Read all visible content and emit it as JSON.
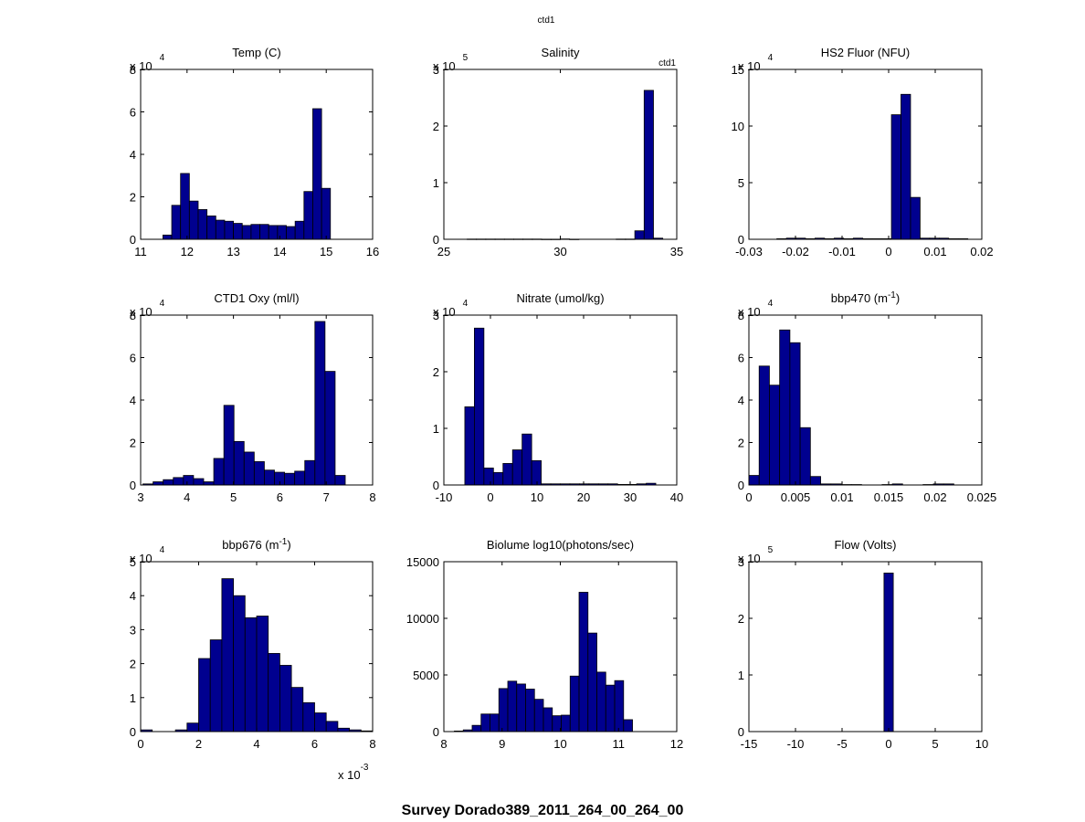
{
  "figure": {
    "header": "ctd1",
    "footer": "Survey Dorado389_2011_264_00_264_00"
  },
  "chart_data": [
    {
      "type": "bar",
      "title": "Temp (C)",
      "multiplier": {
        "base": "x 10",
        "exp": "4",
        "position": "top"
      },
      "xlim": [
        11,
        16
      ],
      "ylim": [
        0,
        8
      ],
      "xticks": [
        11,
        12,
        13,
        14,
        15,
        16
      ],
      "yticks": [
        0,
        2,
        4,
        6,
        8
      ],
      "bin_edges_start": 11.48,
      "bin_width": 0.19,
      "values": [
        0.2,
        1.6,
        3.1,
        1.8,
        1.4,
        1.1,
        0.9,
        0.85,
        0.75,
        0.65,
        0.7,
        0.7,
        0.65,
        0.65,
        0.6,
        0.85,
        2.25,
        6.15,
        2.4
      ],
      "grid": false
    },
    {
      "type": "bar",
      "title": "Salinity",
      "legend": "ctd1",
      "multiplier": {
        "base": "x 10",
        "exp": "5",
        "position": "top"
      },
      "xlim": [
        25,
        35
      ],
      "ylim": [
        0,
        3
      ],
      "xticks": [
        25,
        30,
        35
      ],
      "yticks": [
        0,
        1,
        2,
        3
      ],
      "bin_edges_start": 26.0,
      "bin_width": 0.4,
      "values": [
        0.004,
        0.004,
        0.004,
        0.004,
        0.004,
        0.004,
        0.004,
        0.004,
        0.002,
        0.002,
        0.006,
        0.002,
        0,
        0,
        0,
        0,
        0.004,
        0.004,
        0.15,
        2.63,
        0.02
      ],
      "grid": false
    },
    {
      "type": "bar",
      "title": "HS2 Fluor (NFU)",
      "multiplier": {
        "base": "x 10",
        "exp": "4",
        "position": "top"
      },
      "xlim": [
        -0.03,
        0.02
      ],
      "ylim": [
        0,
        15
      ],
      "xticks": [
        -0.03,
        -0.02,
        -0.01,
        0,
        0.01,
        0.02
      ],
      "yticks": [
        0,
        5,
        10,
        15
      ],
      "bin_edges_start": -0.024,
      "bin_width": 0.00205,
      "values": [
        0.05,
        0.1,
        0.1,
        0.05,
        0.1,
        0.05,
        0.1,
        0.05,
        0.1,
        0.05,
        0.05,
        0.05,
        11.0,
        12.8,
        3.7,
        0.1,
        0.1,
        0.1,
        0.05,
        0.05
      ],
      "grid": false
    },
    {
      "type": "bar",
      "title": "CTD1 Oxy (ml/l)",
      "multiplier": {
        "base": "x 10",
        "exp": "4",
        "position": "top"
      },
      "xlim": [
        3,
        8
      ],
      "ylim": [
        0,
        8
      ],
      "xticks": [
        3,
        4,
        5,
        6,
        7,
        8
      ],
      "yticks": [
        0,
        2,
        4,
        6,
        8
      ],
      "bin_edges_start": 3.05,
      "bin_width": 0.218,
      "values": [
        0.05,
        0.15,
        0.25,
        0.35,
        0.45,
        0.3,
        0.15,
        1.25,
        3.75,
        2.05,
        1.55,
        1.1,
        0.7,
        0.6,
        0.55,
        0.65,
        1.15,
        7.7,
        5.35,
        0.45
      ],
      "grid": false
    },
    {
      "type": "bar",
      "title": "Nitrate (umol/kg)",
      "multiplier": {
        "base": "x 10",
        "exp": "4",
        "position": "top"
      },
      "xlim": [
        -10,
        40
      ],
      "ylim": [
        0,
        3
      ],
      "xticks": [
        -10,
        0,
        10,
        20,
        30,
        40
      ],
      "yticks": [
        0,
        1,
        2,
        3
      ],
      "bin_edges_start": -5.5,
      "bin_width": 2.05,
      "values": [
        1.38,
        2.77,
        0.3,
        0.22,
        0.38,
        0.62,
        0.9,
        0.43,
        0.02,
        0.02,
        0.02,
        0.02,
        0.02,
        0.02,
        0.02,
        0.02,
        0.01,
        0.01,
        0.02,
        0.03
      ],
      "grid": false
    },
    {
      "type": "bar",
      "title": "bbp470 (m",
      "title_sup": "-1",
      "title_end": ")",
      "multiplier": {
        "base": "x 10",
        "exp": "4",
        "position": "top"
      },
      "xlim": [
        0,
        0.025
      ],
      "ylim": [
        0,
        8
      ],
      "xticks": [
        0,
        0.005,
        0.01,
        0.015,
        0.02,
        0.025
      ],
      "yticks": [
        0,
        2,
        4,
        6,
        8
      ],
      "bin_edges_start": 0.0,
      "bin_width": 0.0011,
      "values": [
        0.45,
        5.6,
        4.7,
        7.3,
        6.7,
        2.7,
        0.4,
        0.05,
        0.05,
        0.02,
        0.02,
        0,
        0,
        0.02,
        0.05,
        0,
        0,
        0.02,
        0.05,
        0.05
      ],
      "grid": false
    },
    {
      "type": "bar",
      "title": "bbp676 (m",
      "title_sup": "-1",
      "title_end": ")",
      "multiplier": {
        "base": "x 10",
        "exp": "4",
        "position": "top"
      },
      "x_multiplier": {
        "base": "x 10",
        "exp": "-3"
      },
      "xlim": [
        0,
        8
      ],
      "ylim": [
        0,
        5
      ],
      "xticks": [
        0,
        2,
        4,
        6,
        8
      ],
      "yticks": [
        0,
        1,
        2,
        3,
        4,
        5
      ],
      "bin_edges_start": 0.0,
      "bin_width": 0.4,
      "values": [
        0.05,
        0.0,
        0.0,
        0.05,
        0.25,
        2.15,
        2.7,
        4.5,
        4.0,
        3.35,
        3.4,
        2.3,
        1.95,
        1.3,
        0.85,
        0.55,
        0.3,
        0.1,
        0.05,
        0.02
      ],
      "grid": false
    },
    {
      "type": "bar",
      "title": "Biolume log10(photons/sec)",
      "xlim": [
        8,
        12
      ],
      "ylim": [
        0,
        15000
      ],
      "xticks": [
        8,
        9,
        10,
        11,
        12
      ],
      "yticks": [
        0,
        5000,
        10000,
        15000
      ],
      "bin_edges_start": 8.18,
      "bin_width": 0.153,
      "values": [
        50,
        150,
        550,
        1550,
        1550,
        3800,
        4450,
        4200,
        3750,
        2850,
        2100,
        1400,
        1450,
        4900,
        12300,
        8700,
        5250,
        4100,
        4500,
        1050
      ],
      "grid": false
    },
    {
      "type": "bar",
      "title": "Flow (Volts)",
      "multiplier": {
        "base": "x 10",
        "exp": "5",
        "position": "top"
      },
      "xlim": [
        -15,
        10
      ],
      "ylim": [
        0,
        3
      ],
      "xticks": [
        -15,
        -10,
        -5,
        0,
        5,
        10
      ],
      "yticks": [
        0,
        1,
        2,
        3
      ],
      "bin_edges_start": -0.5,
      "bin_width": 1.0,
      "values": [
        2.8
      ],
      "grid": false
    }
  ]
}
